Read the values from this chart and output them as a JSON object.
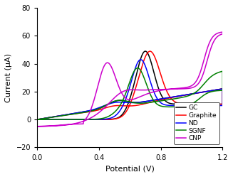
{
  "xlabel": "Potential (V)",
  "ylabel": "Current (μA)",
  "xlim": [
    0.0,
    1.2
  ],
  "ylim": [
    -20,
    80
  ],
  "xticks": [
    0.0,
    0.4,
    0.8,
    1.2
  ],
  "yticks": [
    -20,
    0,
    20,
    40,
    60,
    80
  ],
  "legend_labels": [
    "GC",
    "Graphite",
    "ND",
    "SGNF",
    "CNP"
  ],
  "colors": {
    "GC": "#000000",
    "Graphite": "#ff0000",
    "ND": "#0000ff",
    "SGNF": "#008000",
    "CNP": "#cc00cc"
  },
  "linewidth": 1.1
}
